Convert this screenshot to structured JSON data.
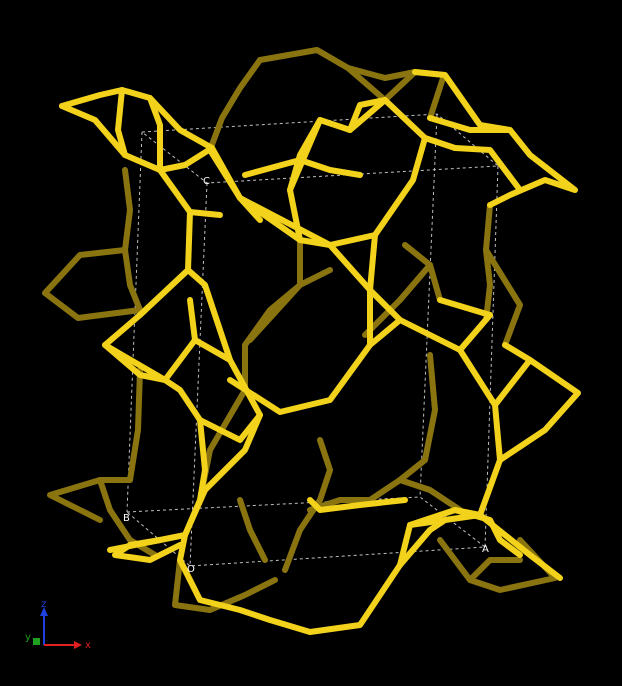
{
  "structure": {
    "bond_color_bright": "#f2d21a",
    "bond_color_dim": "#8a7410",
    "background": "#000000"
  },
  "cell": {
    "corner_labels": {
      "origin": "O",
      "a": "A",
      "b": "B",
      "c": "C"
    },
    "edge_color": "#bfbfbf"
  },
  "axes": {
    "x_label": "x",
    "y_label": "y",
    "z_label": "z",
    "x_color": "#e02020",
    "y_color": "#20a020",
    "z_color": "#2040e0"
  }
}
